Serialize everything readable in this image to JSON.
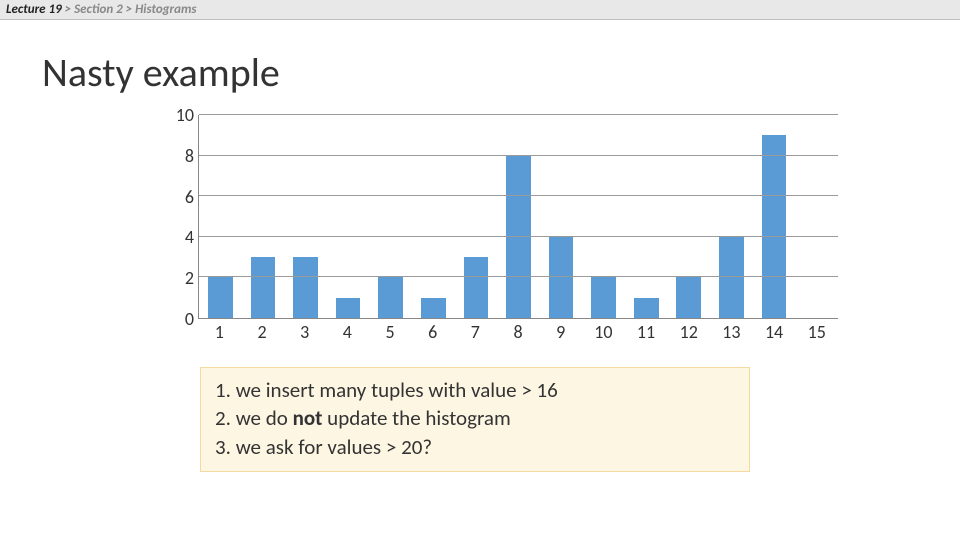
{
  "breadcrumb": {
    "part1": "Lecture 19",
    "sep": ">",
    "part2": "Section 2",
    "part3": "Histograms"
  },
  "title": "Nasty example",
  "chart": {
    "type": "bar",
    "categories": [
      "1",
      "2",
      "3",
      "4",
      "5",
      "6",
      "7",
      "8",
      "9",
      "10",
      "11",
      "12",
      "13",
      "14",
      "15"
    ],
    "values": [
      2,
      3,
      3,
      1,
      2,
      1,
      3,
      8,
      4,
      2,
      1,
      2,
      4,
      9,
      0
    ],
    "ylim": [
      0,
      10
    ],
    "ytick_step": 2,
    "yticks": [
      "0",
      "2",
      "4",
      "6",
      "8",
      "10"
    ],
    "bar_color": "#5b9bd5",
    "grid_color": "#9a9a9a",
    "axis_color": "#888888",
    "background_color": "#ffffff",
    "label_fontsize": 18,
    "bar_width_ratio": 0.58
  },
  "notes": {
    "line1_a": "1. we insert many tuples with value > 16",
    "line2_a": "2. we do ",
    "line2_bold": "not",
    "line2_b": " update the histogram",
    "line3_a": "3. we ask for values > 20?",
    "background_color": "#fdf6e3",
    "border_color": "#f5d9a0",
    "fontsize": 21
  }
}
